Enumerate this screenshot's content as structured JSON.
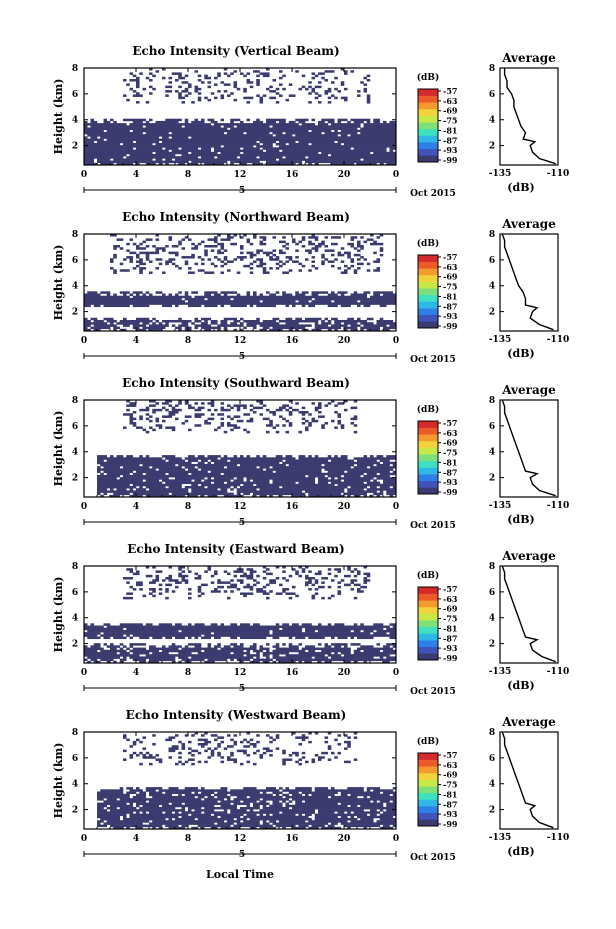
{
  "colors": {
    "echo_fill": "#3b3b70",
    "colorbar": [
      "#3b3b70",
      "#3f54b6",
      "#2f7fe8",
      "#2fb7e8",
      "#3fe0c0",
      "#7ee07a",
      "#c8e84a",
      "#f2d23a",
      "#f49a2e",
      "#ec5a2a",
      "#d62a2a"
    ]
  },
  "figure": {
    "x_axis_label": "Local Time",
    "date_label": "Oct 2015",
    "colorbar_unit": "(dB)",
    "colorbar_ticks": [
      "-57",
      "-63",
      "-69",
      "-75",
      "-81",
      "-87",
      "-93",
      "-99"
    ],
    "avg_title": "Average",
    "avg_xlabel": "(dB)"
  },
  "chart_data": [
    {
      "type": "heatmap",
      "title": "Echo Intensity (Vertical Beam)",
      "ylabel": "Height (km)",
      "x_ticks": [
        "0",
        "4",
        "8",
        "12",
        "16",
        "20",
        "0"
      ],
      "y_ticks": [
        "8",
        "6",
        "4",
        "2"
      ],
      "xlim": [
        0,
        24
      ],
      "ylim": [
        0.5,
        8
      ],
      "day_marker": "5",
      "layers": [
        {
          "t": [
            0,
            24
          ],
          "h": [
            0.5,
            4.0
          ],
          "fill": 0.95
        },
        {
          "t": [
            3,
            22
          ],
          "h": [
            5.3,
            8.0
          ],
          "fill": 0.2
        }
      ],
      "average": {
        "xlim": [
          -135,
          -110
        ],
        "x_ticks": [
          "-135",
          "-110"
        ],
        "y_ticks": [
          "8",
          "6",
          "4",
          "2"
        ],
        "h": [
          0.6,
          1.0,
          1.5,
          2.0,
          2.3,
          2.5,
          3.0,
          3.5,
          4.0,
          4.5,
          5.0,
          5.5,
          6.0,
          6.5,
          7.0,
          7.5,
          8.0
        ],
        "db": [
          -111,
          -118,
          -121,
          -122,
          -120,
          -125,
          -124,
          -126,
          -127,
          -128,
          -129,
          -129,
          -130,
          -132,
          -132,
          -133,
          -133
        ]
      }
    },
    {
      "type": "heatmap",
      "title": "Echo Intensity (Northward Beam)",
      "ylabel": "Height (km)",
      "x_ticks": [
        "0",
        "4",
        "8",
        "12",
        "16",
        "20",
        "0"
      ],
      "y_ticks": [
        "8",
        "6",
        "4",
        "2"
      ],
      "xlim": [
        0,
        24
      ],
      "ylim": [
        0.5,
        8
      ],
      "day_marker": "5",
      "layers": [
        {
          "t": [
            0,
            24
          ],
          "h": [
            2.3,
            3.5
          ],
          "fill": 0.97
        },
        {
          "t": [
            0,
            24
          ],
          "h": [
            0.5,
            1.6
          ],
          "fill": 0.75
        },
        {
          "t": [
            2,
            23
          ],
          "h": [
            5.0,
            8.0
          ],
          "fill": 0.25
        }
      ],
      "average": {
        "xlim": [
          -135,
          -110
        ],
        "x_ticks": [
          "-135",
          "-110"
        ],
        "y_ticks": [
          "8",
          "6",
          "4",
          "2"
        ],
        "h": [
          0.6,
          1.0,
          1.5,
          2.0,
          2.3,
          2.5,
          3.0,
          3.5,
          4.0,
          4.5,
          5.0,
          5.5,
          6.0,
          6.5,
          7.0,
          7.5,
          8.0
        ],
        "db": [
          -112,
          -118,
          -122,
          -121,
          -119,
          -124,
          -124,
          -125,
          -127,
          -128,
          -129,
          -130,
          -131,
          -132,
          -133,
          -133,
          -134
        ]
      }
    },
    {
      "type": "heatmap",
      "title": "Echo Intensity (Southward Beam)",
      "ylabel": "Height (km)",
      "x_ticks": [
        "0",
        "4",
        "8",
        "12",
        "16",
        "20",
        "0"
      ],
      "y_ticks": [
        "8",
        "6",
        "4",
        "2"
      ],
      "xlim": [
        0,
        24
      ],
      "ylim": [
        0.5,
        8
      ],
      "day_marker": "5",
      "layers": [
        {
          "t": [
            1,
            24
          ],
          "h": [
            0.5,
            3.8
          ],
          "fill": 0.9
        },
        {
          "t": [
            3,
            21
          ],
          "h": [
            5.5,
            8.0
          ],
          "fill": 0.25
        }
      ],
      "average": {
        "xlim": [
          -135,
          -110
        ],
        "x_ticks": [
          "-135",
          "-110"
        ],
        "y_ticks": [
          "8",
          "6",
          "4",
          "2"
        ],
        "h": [
          0.6,
          1.0,
          1.5,
          2.0,
          2.3,
          2.5,
          3.0,
          3.5,
          4.0,
          4.5,
          5.0,
          5.5,
          6.0,
          6.5,
          7.0,
          7.5,
          8.0
        ],
        "db": [
          -111,
          -118,
          -121,
          -122,
          -119,
          -124,
          -125,
          -126,
          -127,
          -128,
          -129,
          -130,
          -131,
          -132,
          -133,
          -133,
          -134
        ]
      }
    },
    {
      "type": "heatmap",
      "title": "Echo Intensity (Eastward Beam)",
      "ylabel": "Height (km)",
      "x_ticks": [
        "0",
        "4",
        "8",
        "12",
        "16",
        "20",
        "0"
      ],
      "y_ticks": [
        "8",
        "6",
        "4",
        "2"
      ],
      "xlim": [
        0,
        24
      ],
      "ylim": [
        0.5,
        8
      ],
      "day_marker": "5",
      "layers": [
        {
          "t": [
            0,
            24
          ],
          "h": [
            2.3,
            3.6
          ],
          "fill": 0.95
        },
        {
          "t": [
            0,
            24
          ],
          "h": [
            0.5,
            2.0
          ],
          "fill": 0.85
        },
        {
          "t": [
            3,
            22
          ],
          "h": [
            5.5,
            8.0
          ],
          "fill": 0.25
        }
      ],
      "average": {
        "xlim": [
          -135,
          -110
        ],
        "x_ticks": [
          "-135",
          "-110"
        ],
        "y_ticks": [
          "8",
          "6",
          "4",
          "2"
        ],
        "h": [
          0.6,
          1.0,
          1.5,
          2.0,
          2.3,
          2.5,
          3.0,
          3.5,
          4.0,
          4.5,
          5.0,
          5.5,
          6.0,
          6.5,
          7.0,
          7.5,
          8.0
        ],
        "db": [
          -111,
          -117,
          -121,
          -122,
          -119,
          -124,
          -125,
          -126,
          -127,
          -128,
          -129,
          -130,
          -131,
          -132,
          -133,
          -133,
          -134
        ]
      }
    },
    {
      "type": "heatmap",
      "title": "Echo Intensity (Westward Beam)",
      "ylabel": "Height (km)",
      "x_ticks": [
        "0",
        "4",
        "8",
        "12",
        "16",
        "20",
        "0"
      ],
      "y_ticks": [
        "8",
        "6",
        "4",
        "2"
      ],
      "xlim": [
        0,
        24
      ],
      "ylim": [
        0.5,
        8
      ],
      "day_marker": "5",
      "layers": [
        {
          "t": [
            1,
            24
          ],
          "h": [
            0.5,
            3.8
          ],
          "fill": 0.85
        },
        {
          "t": [
            3,
            21
          ],
          "h": [
            5.5,
            8.0
          ],
          "fill": 0.22
        }
      ],
      "average": {
        "xlim": [
          -135,
          -110
        ],
        "x_ticks": [
          "-135",
          "-110"
        ],
        "y_ticks": [
          "8",
          "6",
          "4",
          "2"
        ],
        "h": [
          0.6,
          1.0,
          1.5,
          2.0,
          2.3,
          2.5,
          3.0,
          3.5,
          4.0,
          4.5,
          5.0,
          5.5,
          6.0,
          6.5,
          7.0,
          7.5,
          8.0
        ],
        "db": [
          -112,
          -118,
          -121,
          -122,
          -120,
          -124,
          -125,
          -126,
          -127,
          -128,
          -129,
          -130,
          -131,
          -132,
          -133,
          -133,
          -134
        ]
      }
    }
  ]
}
